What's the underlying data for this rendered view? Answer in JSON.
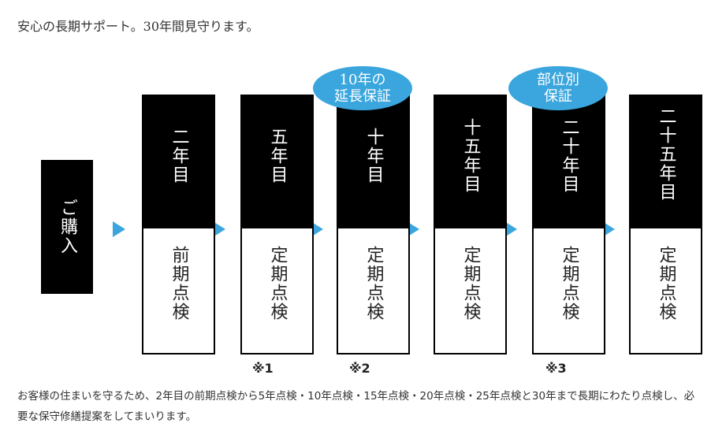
{
  "title": "安心の長期サポート。30年間見守ります。",
  "purchase": "ご購入",
  "columns": [
    {
      "year": "二年目",
      "check": "前期点検"
    },
    {
      "year": "五年目",
      "check": "定期点検"
    },
    {
      "year": "十年目",
      "check": "定期点検"
    },
    {
      "year": "十五年目",
      "check": "定期点検"
    },
    {
      "year": "二十年目",
      "check": "定期点検"
    },
    {
      "year": "二十五年目",
      "check": "定期点検"
    }
  ],
  "badges": [
    {
      "line1": "10年の",
      "line2": "延長保証"
    },
    {
      "line1": "部位別",
      "line2": "保証"
    }
  ],
  "notes": [
    "※1",
    "※2",
    "※3"
  ],
  "description": "お客様の住まいを守るため、2年目の前期点検から5年点検・10年点検・15年点検・20年点検・25年点検と30年まで長期にわたり点検し、必要な保守修繕提案をしてまいります。",
  "colors": {
    "accent": "#3aa6dd",
    "box": "#000000"
  }
}
